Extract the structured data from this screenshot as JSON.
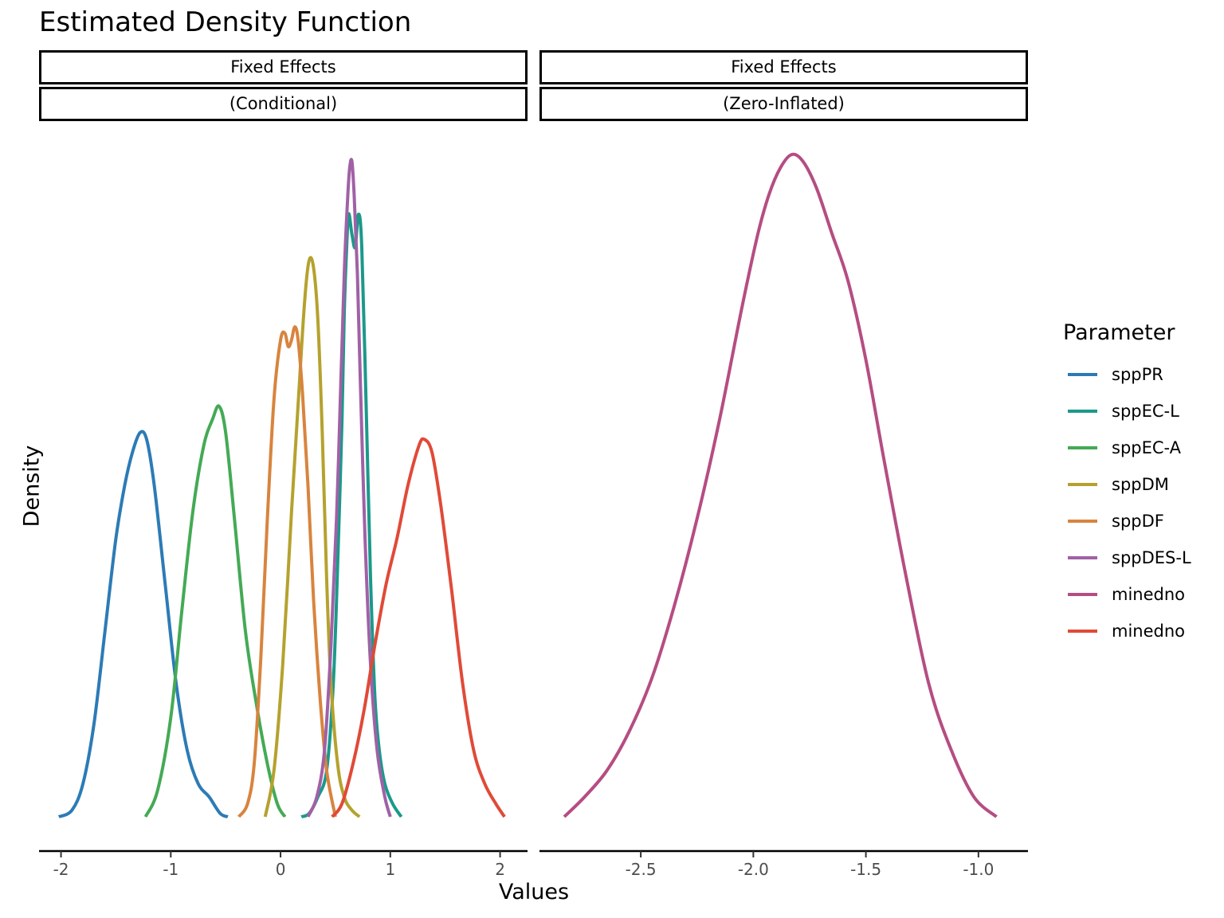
{
  "chart_data": {
    "type": "line",
    "title": "Estimated Density Function",
    "xlabel": "Values",
    "ylabel": "Density",
    "legend": {
      "title": "Parameter",
      "position": "right",
      "items": [
        {
          "label": "sppPR",
          "color": "#2c7bb6"
        },
        {
          "label": "sppEC-L",
          "color": "#1b998b"
        },
        {
          "label": "sppEC-A",
          "color": "#44aa55"
        },
        {
          "label": "sppDM",
          "color": "#b5a22e"
        },
        {
          "label": "sppDF",
          "color": "#d8843e"
        },
        {
          "label": "sppDES-L",
          "color": "#a061a6"
        },
        {
          "label": "minedno",
          "color": "#b54d82"
        },
        {
          "label": "minedno",
          "color": "#e04a38"
        }
      ]
    },
    "grid": false,
    "panels": [
      {
        "strip": [
          "Fixed Effects",
          "(Conditional)"
        ],
        "xlim": [
          -2.2,
          2.25
        ],
        "xticks": [
          -2,
          -1,
          0,
          1,
          2
        ],
        "xticklabels": [
          "-2",
          "-1",
          "0",
          "1",
          "2"
        ],
        "series": [
          {
            "name": "sppPR",
            "color": "#2c7bb6",
            "x": [
              -2.02,
              -1.9,
              -1.8,
              -1.7,
              -1.6,
              -1.5,
              -1.42,
              -1.35,
              -1.28,
              -1.22,
              -1.15,
              -1.05,
              -0.95,
              -0.85,
              -0.75,
              -0.65,
              -0.55,
              -0.48
            ],
            "y": [
              0.0,
              0.01,
              0.05,
              0.14,
              0.28,
              0.42,
              0.5,
              0.55,
              0.58,
              0.57,
              0.5,
              0.35,
              0.2,
              0.1,
              0.05,
              0.03,
              0.005,
              0.0
            ]
          },
          {
            "name": "sppEC-L",
            "color": "#1b998b",
            "x": [
              0.19,
              0.26,
              0.34,
              0.42,
              0.48,
              0.52,
              0.56,
              0.58,
              0.6,
              0.62,
              0.65,
              0.68,
              0.71,
              0.74,
              0.78,
              0.82,
              0.86,
              0.9,
              0.95,
              1.02,
              1.1
            ],
            "y": [
              0.0,
              0.005,
              0.03,
              0.07,
              0.2,
              0.38,
              0.6,
              0.76,
              0.85,
              0.91,
              0.88,
              0.86,
              0.91,
              0.86,
              0.62,
              0.36,
              0.18,
              0.1,
              0.05,
              0.02,
              0.0
            ]
          },
          {
            "name": "sppEC-A",
            "color": "#44aa55",
            "x": [
              -1.23,
              -1.12,
              -1.0,
              -0.9,
              -0.8,
              -0.7,
              -0.62,
              -0.56,
              -0.5,
              -0.42,
              -0.32,
              -0.22,
              -0.12,
              -0.03,
              0.04
            ],
            "y": [
              0.0,
              0.04,
              0.15,
              0.31,
              0.46,
              0.56,
              0.6,
              0.62,
              0.58,
              0.45,
              0.28,
              0.17,
              0.08,
              0.02,
              0.0
            ]
          },
          {
            "name": "sppDM",
            "color": "#b5a22e",
            "x": [
              -0.14,
              -0.06,
              0.02,
              0.1,
              0.17,
              0.22,
              0.26,
              0.3,
              0.34,
              0.38,
              0.42,
              0.46,
              0.52,
              0.58,
              0.65,
              0.72
            ],
            "y": [
              0.0,
              0.07,
              0.23,
              0.46,
              0.65,
              0.78,
              0.84,
              0.83,
              0.75,
              0.58,
              0.36,
              0.2,
              0.08,
              0.03,
              0.01,
              0.0
            ]
          },
          {
            "name": "sppDF",
            "color": "#d8843e",
            "x": [
              -0.38,
              -0.3,
              -0.24,
              -0.18,
              -0.12,
              -0.06,
              0.0,
              0.04,
              0.07,
              0.1,
              0.13,
              0.16,
              0.2,
              0.25,
              0.3,
              0.36,
              0.42,
              0.5
            ],
            "y": [
              0.0,
              0.02,
              0.08,
              0.24,
              0.45,
              0.63,
              0.72,
              0.73,
              0.71,
              0.72,
              0.74,
              0.72,
              0.64,
              0.5,
              0.33,
              0.18,
              0.07,
              0.0
            ]
          },
          {
            "name": "sppDES-L",
            "color": "#a061a6",
            "x": [
              0.25,
              0.33,
              0.4,
              0.46,
              0.51,
              0.55,
              0.58,
              0.61,
              0.63,
              0.65,
              0.67,
              0.7,
              0.73,
              0.77,
              0.82,
              0.88,
              0.95,
              1.0
            ],
            "y": [
              0.0,
              0.03,
              0.1,
              0.26,
              0.45,
              0.66,
              0.82,
              0.93,
              0.98,
              0.99,
              0.94,
              0.82,
              0.64,
              0.42,
              0.23,
              0.1,
              0.03,
              0.0
            ]
          },
          {
            "name": "minedno",
            "color": "#e04a38",
            "x": [
              0.47,
              0.56,
              0.66,
              0.76,
              0.86,
              0.96,
              1.06,
              1.16,
              1.26,
              1.31,
              1.38,
              1.46,
              1.56,
              1.66,
              1.76,
              1.86,
              1.96,
              2.04
            ],
            "y": [
              0.0,
              0.02,
              0.08,
              0.16,
              0.26,
              0.35,
              0.42,
              0.5,
              0.56,
              0.57,
              0.55,
              0.47,
              0.34,
              0.2,
              0.1,
              0.05,
              0.02,
              0.0
            ]
          }
        ]
      },
      {
        "strip": [
          "Fixed Effects",
          "(Zero-Inflated)"
        ],
        "xlim": [
          -2.95,
          -0.78
        ],
        "xticks": [
          -2.5,
          -2.0,
          -1.5,
          -1.0
        ],
        "xticklabels": [
          "-2.5",
          "-2.0",
          "-1.5",
          "-1.0"
        ],
        "series": [
          {
            "name": "minedno",
            "color": "#b54d82",
            "x": [
              -2.84,
              -2.75,
              -2.65,
              -2.55,
              -2.45,
              -2.35,
              -2.25,
              -2.15,
              -2.05,
              -1.98,
              -1.93,
              -1.88,
              -1.83,
              -1.78,
              -1.72,
              -1.65,
              -1.58,
              -1.5,
              -1.42,
              -1.32,
              -1.22,
              -1.12,
              -1.02,
              -0.92
            ],
            "y": [
              0.0,
              0.03,
              0.07,
              0.13,
              0.21,
              0.32,
              0.45,
              0.6,
              0.77,
              0.88,
              0.94,
              0.98,
              1.0,
              0.99,
              0.95,
              0.88,
              0.81,
              0.69,
              0.54,
              0.36,
              0.2,
              0.1,
              0.03,
              0.0
            ]
          }
        ]
      }
    ]
  }
}
